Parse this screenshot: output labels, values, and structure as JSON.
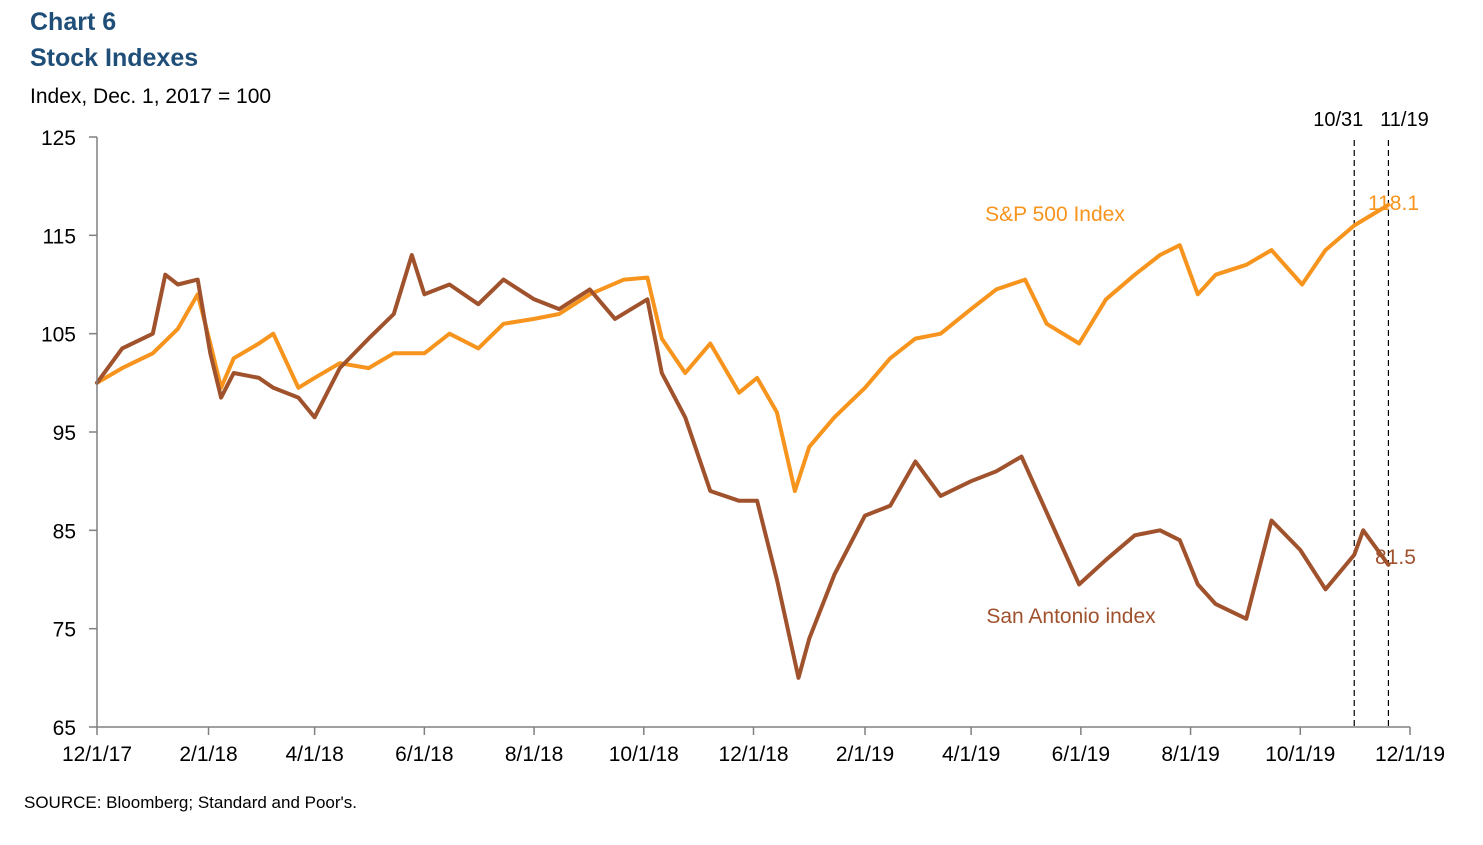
{
  "chart_data": {
    "type": "line",
    "title": "Chart 6",
    "subtitle": "Stock Indexes",
    "ylabel": "Index, Dec. 1, 2017 = 100",
    "ylim": [
      65,
      125
    ],
    "yticks": [
      65,
      75,
      85,
      95,
      105,
      115,
      125
    ],
    "xlim": [
      "2017-12-01",
      "2019-12-01"
    ],
    "xticks": [
      "12/1/17",
      "2/1/18",
      "4/1/18",
      "6/1/18",
      "8/1/18",
      "10/1/18",
      "12/1/18",
      "2/1/19",
      "4/1/19",
      "6/1/19",
      "8/1/19",
      "10/1/19",
      "12/1/19"
    ],
    "xtick_dates": [
      "2017-12-01",
      "2018-02-01",
      "2018-04-01",
      "2018-06-01",
      "2018-08-01",
      "2018-10-01",
      "2018-12-01",
      "2019-02-01",
      "2019-04-01",
      "2019-06-01",
      "2019-08-01",
      "2019-10-01",
      "2019-12-01"
    ],
    "grid": false,
    "reference_lines": [
      {
        "label": "10/31",
        "date": "2019-10-31"
      },
      {
        "label": "11/19",
        "date": "2019-11-19"
      }
    ],
    "series": [
      {
        "name": "S&P 500 Index",
        "color": "#f7941d",
        "end_label": "118.1",
        "x": [
          "2017-12-01",
          "2017-12-15",
          "2018-01-01",
          "2018-01-15",
          "2018-01-26",
          "2018-02-02",
          "2018-02-08",
          "2018-02-15",
          "2018-03-01",
          "2018-03-09",
          "2018-03-23",
          "2018-04-01",
          "2018-04-15",
          "2018-05-01",
          "2018-05-15",
          "2018-06-01",
          "2018-06-15",
          "2018-07-01",
          "2018-07-15",
          "2018-08-01",
          "2018-08-15",
          "2018-09-01",
          "2018-09-20",
          "2018-10-03",
          "2018-10-11",
          "2018-10-24",
          "2018-11-07",
          "2018-11-23",
          "2018-12-03",
          "2018-12-14",
          "2018-12-24",
          "2019-01-01",
          "2019-01-15",
          "2019-02-01",
          "2019-02-15",
          "2019-03-01",
          "2019-03-15",
          "2019-04-01",
          "2019-04-15",
          "2019-05-01",
          "2019-05-13",
          "2019-05-31",
          "2019-06-15",
          "2019-07-01",
          "2019-07-15",
          "2019-07-26",
          "2019-08-05",
          "2019-08-15",
          "2019-09-01",
          "2019-09-15",
          "2019-10-02",
          "2019-10-15",
          "2019-10-31",
          "2019-11-19"
        ],
        "values": [
          100.0,
          101.5,
          103.0,
          105.5,
          109.0,
          104.0,
          99.5,
          102.5,
          104.0,
          105.0,
          99.5,
          100.5,
          102.0,
          101.5,
          103.0,
          103.0,
          105.0,
          103.5,
          106.0,
          106.5,
          107.0,
          109.0,
          110.5,
          110.7,
          104.5,
          101.0,
          104.0,
          99.0,
          100.5,
          97.0,
          89.0,
          93.5,
          96.5,
          99.5,
          102.5,
          104.5,
          105.0,
          107.5,
          109.5,
          110.5,
          106.0,
          104.0,
          108.5,
          111.0,
          113.0,
          114.0,
          109.0,
          111.0,
          112.0,
          113.5,
          110.0,
          113.5,
          116.0,
          118.1
        ]
      },
      {
        "name": "San Antonio index",
        "color": "#a0522d",
        "end_label": "81.5",
        "x": [
          "2017-12-01",
          "2017-12-15",
          "2018-01-01",
          "2018-01-08",
          "2018-01-15",
          "2018-01-26",
          "2018-02-02",
          "2018-02-08",
          "2018-02-15",
          "2018-03-01",
          "2018-03-09",
          "2018-03-23",
          "2018-04-01",
          "2018-04-15",
          "2018-05-01",
          "2018-05-15",
          "2018-05-25",
          "2018-06-01",
          "2018-06-15",
          "2018-07-01",
          "2018-07-15",
          "2018-08-01",
          "2018-08-15",
          "2018-09-01",
          "2018-09-15",
          "2018-10-03",
          "2018-10-11",
          "2018-10-24",
          "2018-11-07",
          "2018-11-23",
          "2018-12-03",
          "2018-12-14",
          "2018-12-26",
          "2019-01-01",
          "2019-01-15",
          "2019-02-01",
          "2019-02-15",
          "2019-03-01",
          "2019-03-15",
          "2019-04-01",
          "2019-04-15",
          "2019-04-29",
          "2019-05-15",
          "2019-05-31",
          "2019-06-15",
          "2019-07-01",
          "2019-07-15",
          "2019-07-26",
          "2019-08-05",
          "2019-08-15",
          "2019-09-01",
          "2019-09-15",
          "2019-10-01",
          "2019-10-15",
          "2019-10-31",
          "2019-11-05",
          "2019-11-19"
        ],
        "values": [
          100.0,
          103.5,
          105.0,
          111.0,
          110.0,
          110.5,
          103.0,
          98.5,
          101.0,
          100.5,
          99.5,
          98.5,
          96.5,
          101.5,
          104.5,
          107.0,
          113.0,
          109.0,
          110.0,
          108.0,
          110.5,
          108.5,
          107.5,
          109.5,
          106.5,
          108.5,
          101.0,
          96.5,
          89.0,
          88.0,
          88.0,
          80.0,
          70.0,
          74.0,
          80.5,
          86.5,
          87.5,
          92.0,
          88.5,
          90.0,
          91.0,
          92.5,
          86.0,
          79.5,
          82.0,
          84.5,
          85.0,
          84.0,
          79.5,
          77.5,
          76.0,
          86.0,
          83.0,
          79.0,
          82.5,
          85.0,
          81.5
        ]
      }
    ]
  }
}
